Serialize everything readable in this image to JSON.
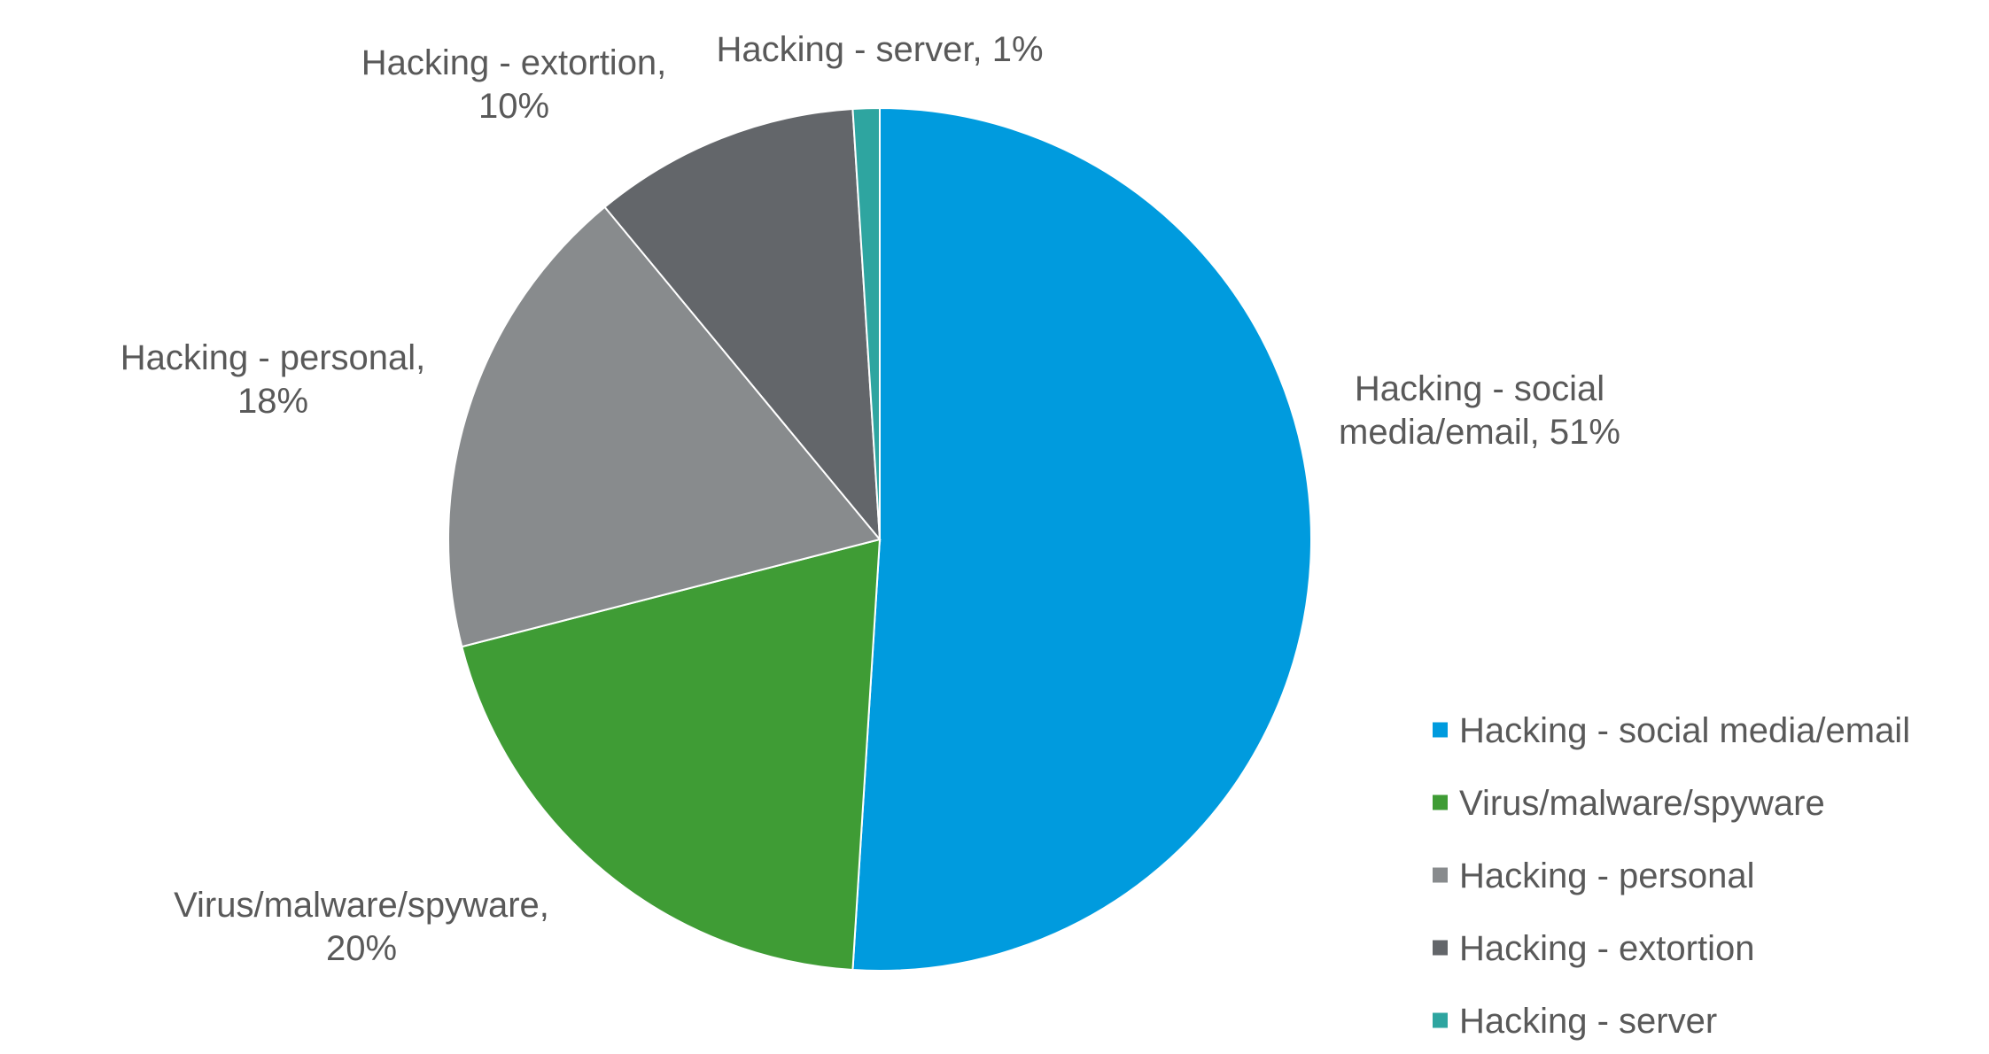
{
  "chart_data": {
    "type": "pie",
    "title": "",
    "slices": [
      {
        "name": "Hacking - social media/email",
        "value": 51,
        "label": "51%",
        "color": "#009BDE"
      },
      {
        "name": "Virus/malware/spyware",
        "value": 20,
        "label": "20%",
        "color": "#3F9C35"
      },
      {
        "name": "Hacking - personal",
        "value": 18,
        "label": "18%",
        "color": "#888B8D"
      },
      {
        "name": "Hacking - extortion",
        "value": 10,
        "label": "10%",
        "color": "#63666A"
      },
      {
        "name": "Hacking - server",
        "value": 1,
        "label": "1%",
        "color": "#2EA5A0"
      }
    ],
    "data_labels": [
      {
        "lines": [
          "Hacking - social",
          "media/email, 51%"
        ]
      },
      {
        "lines": [
          "Virus/malware/spyware,",
          "20%"
        ]
      },
      {
        "lines": [
          "Hacking - personal,",
          "18%"
        ]
      },
      {
        "lines": [
          "Hacking - extortion,",
          "10%"
        ]
      },
      {
        "lines": [
          "Hacking - server, 1%"
        ]
      }
    ],
    "legend": {
      "position": "bottom-right",
      "entries": [
        "Hacking - social media/email",
        "Virus/malware/spyware",
        "Hacking - personal",
        "Hacking - extortion",
        "Hacking - server"
      ]
    }
  }
}
